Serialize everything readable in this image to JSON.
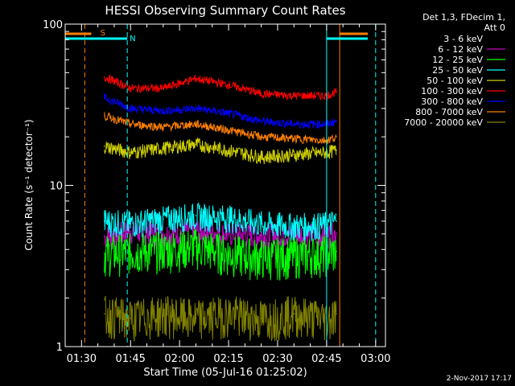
{
  "chart_data": {
    "type": "line",
    "title": "HESSI Observing Summary Count Rates",
    "xlabel": "Start Time (05-Jul-16 01:25:02)",
    "ylabel": "Count Rate (s⁻¹ detector⁻¹)",
    "yscale": "log",
    "ylim": [
      1,
      100
    ],
    "xlim": [
      "01:25",
      "03:03"
    ],
    "x_ticks": [
      "01:30",
      "01:45",
      "02:00",
      "02:15",
      "02:30",
      "02:45",
      "03:00"
    ],
    "y_ticks": [
      "1",
      "10",
      "100"
    ],
    "legend_title_lines": [
      "Det 1,3, FDecim 1,",
      "Att 0"
    ],
    "legend_position": "right",
    "footer": "2-Nov-2017 17:17",
    "x": [
      "01:37",
      "01:45",
      "01:55",
      "02:05",
      "02:15",
      "02:25",
      "02:35",
      "02:45",
      "02:48"
    ],
    "series": [
      {
        "name": "3 - 6 keV",
        "color": "#000000",
        "values": [
          null,
          null,
          null,
          null,
          null,
          null,
          null,
          null,
          null
        ]
      },
      {
        "name": "6 - 12 keV",
        "color": "#c000c0",
        "values": [
          4.8,
          5.2,
          5.0,
          5.3,
          5.0,
          4.9,
          5.0,
          4.9,
          5.1
        ]
      },
      {
        "name": "12 - 25 keV",
        "color": "#00ff00",
        "values": [
          3.8,
          3.9,
          4.0,
          4.2,
          3.8,
          3.6,
          3.7,
          3.8,
          3.9
        ]
      },
      {
        "name": "25 - 50 keV",
        "color": "#00ffff",
        "values": [
          6.0,
          5.8,
          6.2,
          6.5,
          6.3,
          5.8,
          5.6,
          5.7,
          6.0
        ]
      },
      {
        "name": "50 - 100 keV",
        "color": "#d0d000",
        "values": [
          17.5,
          16.0,
          17.0,
          18.0,
          16.5,
          15.0,
          15.5,
          16.0,
          16.5
        ]
      },
      {
        "name": "100 - 300 keV",
        "color": "#ff0000",
        "values": [
          47.0,
          40.0,
          40.0,
          46.0,
          42.0,
          37.0,
          36.0,
          36.0,
          38.0
        ]
      },
      {
        "name": "300 - 800 keV",
        "color": "#0000ff",
        "values": [
          35.0,
          30.0,
          29.0,
          30.0,
          28.0,
          25.0,
          24.0,
          24.0,
          25.0
        ]
      },
      {
        "name": "800 - 7000 keV",
        "color": "#ff8000",
        "values": [
          27.0,
          24.0,
          23.0,
          24.0,
          22.0,
          20.0,
          19.5,
          19.0,
          20.0
        ]
      },
      {
        "name": "7000 - 20000 keV",
        "color": "#808000",
        "values": [
          1.6,
          1.5,
          1.6,
          1.5,
          1.6,
          1.5,
          1.6,
          1.5,
          1.6
        ]
      }
    ],
    "annotations": [
      {
        "text": "S",
        "color": "#ff8000",
        "x": "01:35"
      },
      {
        "text": "N",
        "color": "#00ffff",
        "x": "01:44"
      }
    ],
    "markers": [
      {
        "label": "S",
        "time": "01:31",
        "color": "#ff8000",
        "style": "dashed"
      },
      {
        "label": "N",
        "time": "01:44",
        "color": "#00ffff",
        "style": "dashed"
      },
      {
        "label": "",
        "time": "02:45",
        "color": "#00ffff",
        "style": "solid"
      },
      {
        "label": "",
        "time": "02:49",
        "color": "#ff8000",
        "style": "solid"
      },
      {
        "label": "",
        "time": "03:00",
        "color": "#00ffff",
        "style": "dashed"
      }
    ]
  }
}
